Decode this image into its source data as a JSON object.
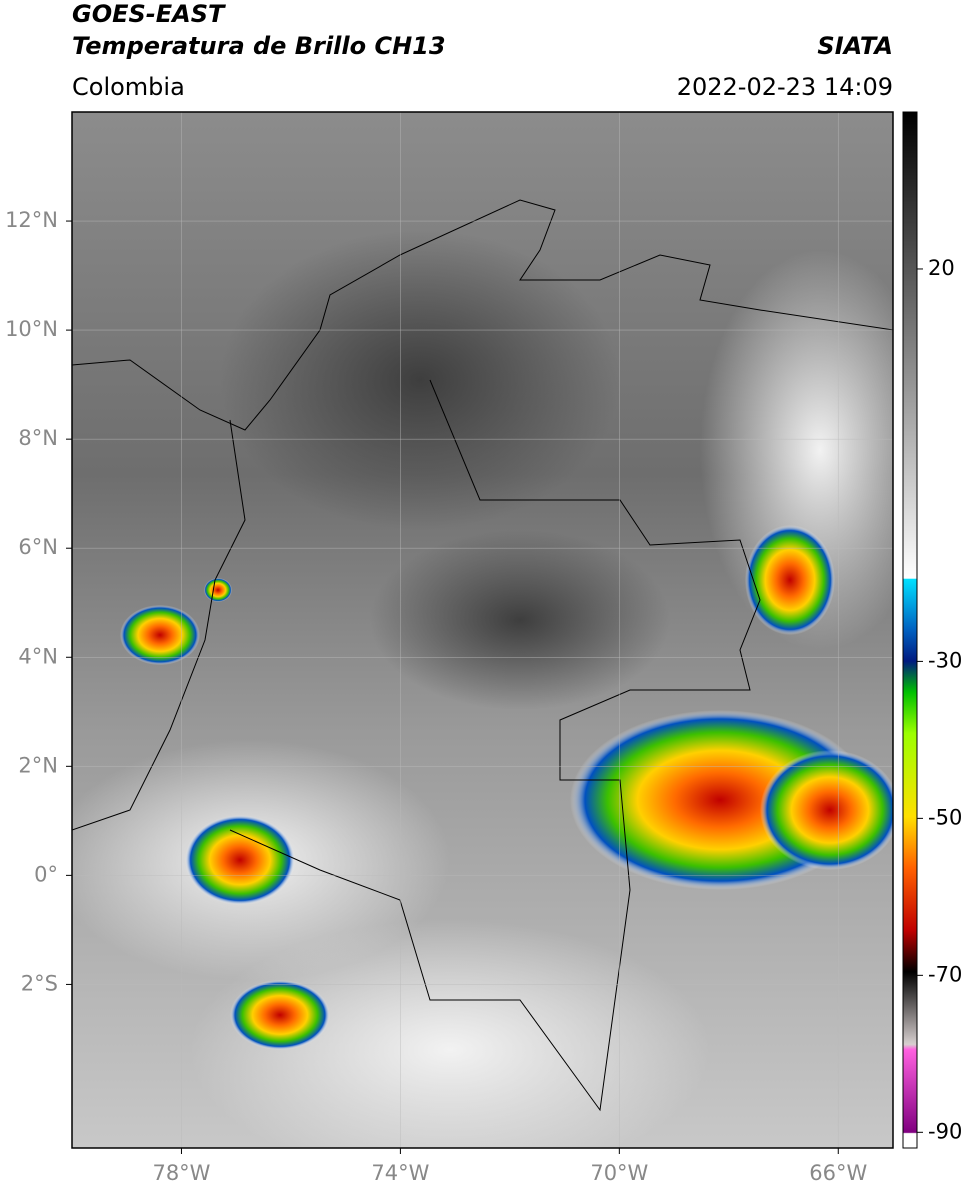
{
  "header": {
    "source": "GOES-EAST",
    "title": "Temperatura de Brillo CH13",
    "agency": "SIATA",
    "region": "Colombia",
    "datetime": "2022-02-23 14:09"
  },
  "map": {
    "xlim": [
      -80,
      -65
    ],
    "ylim": [
      -5,
      14
    ],
    "xticks": [
      {
        "value": -78,
        "label": "78°W"
      },
      {
        "value": -74,
        "label": "74°W"
      },
      {
        "value": -70,
        "label": "70°W"
      },
      {
        "value": -66,
        "label": "66°W"
      }
    ],
    "yticks": [
      {
        "value": 12,
        "label": "12°N"
      },
      {
        "value": 10,
        "label": "10°N"
      },
      {
        "value": 8,
        "label": "8°N"
      },
      {
        "value": 6,
        "label": "6°N"
      },
      {
        "value": 4,
        "label": "4°N"
      },
      {
        "value": 2,
        "label": "2°N"
      },
      {
        "value": 0,
        "label": "0°"
      },
      {
        "value": -2,
        "label": "2°S"
      }
    ]
  },
  "colorbar": {
    "lim": [
      -92,
      40
    ],
    "ticks": [
      20,
      -30,
      -50,
      -70,
      -90
    ]
  }
}
